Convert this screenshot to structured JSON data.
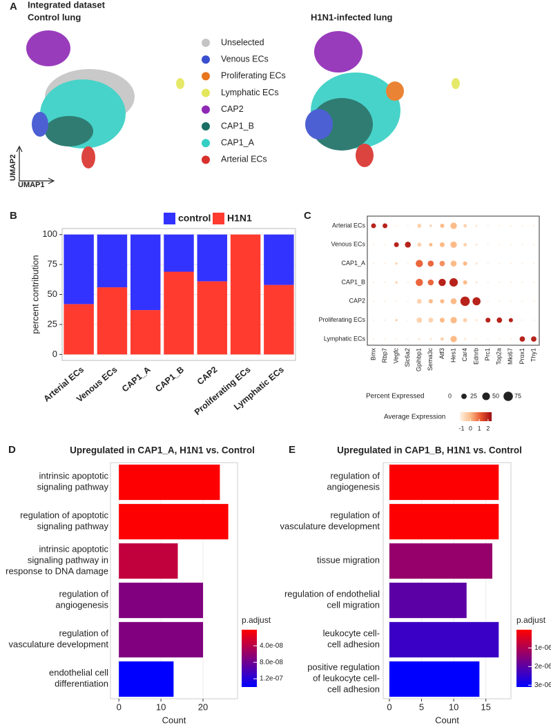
{
  "panel_labels": [
    "A",
    "B",
    "C",
    "D",
    "E"
  ],
  "panel_a": {
    "title": "Integrated dataset",
    "left_title": "Control lung",
    "right_title": "H1N1-infected lung",
    "x_axis": "UMAP1",
    "y_axis": "UMAP2",
    "legend": [
      {
        "name": "Unselected",
        "color": "#c4c4c4"
      },
      {
        "name": "Venous ECs",
        "color": "#3a4fcf"
      },
      {
        "name": "Proliferating ECs",
        "color": "#e8761e"
      },
      {
        "name": "Lymphatic ECs",
        "color": "#e3e65a"
      },
      {
        "name": "CAP2",
        "color": "#8e28b5"
      },
      {
        "name": "CAP1_B",
        "color": "#1a6e64"
      },
      {
        "name": "CAP1_A",
        "color": "#34cfc4"
      },
      {
        "name": "Arterial ECs",
        "color": "#d9302c"
      }
    ]
  },
  "chart_data": [
    {
      "type": "stacked_bar",
      "ylabel": "percent contribution",
      "categories": [
        "Arterial ECs",
        "Venous ECs",
        "CAP1_A",
        "CAP1_B",
        "CAP2",
        "Proliferating ECs",
        "Lymphatic ECs"
      ],
      "category_colors": [
        "#d9302c",
        "#2f3fc9",
        "#2ec9c0",
        "#1a6e64",
        "#8e28b5",
        "#e8761e",
        "#d8d020"
      ],
      "series": [
        {
          "name": "control",
          "color": "#3333ff",
          "values": [
            58,
            44,
            63,
            31,
            39,
            0,
            42
          ]
        },
        {
          "name": "H1N1",
          "color": "#ff3b30",
          "values": [
            42,
            56,
            37,
            69,
            61,
            100,
            58
          ]
        }
      ],
      "ylim": [
        -5,
        105
      ],
      "yticks": [
        0,
        25,
        50,
        75,
        100
      ],
      "grid": true
    },
    {
      "type": "dot",
      "rows": [
        "Arterial ECs",
        "Venous ECs",
        "CAP1_A",
        "CAP1_B",
        "CAP2",
        "Proliferating ECs",
        "Lymphatic ECs"
      ],
      "columns": [
        "Bmx",
        "Rbp7",
        "Vegfc",
        "Slc6a2",
        "Gpihbp1",
        "Sema3c",
        "Atf3",
        "Hes1",
        "Car4",
        "Ednrb",
        "Prc1",
        "Top2a",
        "Mki67",
        "Prox1",
        "Thy1"
      ],
      "percent_expressed": [
        [
          20,
          20,
          2,
          2,
          15,
          5,
          15,
          35,
          10,
          5,
          2,
          2,
          2,
          2,
          2
        ],
        [
          2,
          2,
          20,
          30,
          15,
          10,
          20,
          35,
          10,
          5,
          2,
          2,
          2,
          2,
          2
        ],
        [
          2,
          2,
          5,
          2,
          45,
          30,
          25,
          30,
          15,
          5,
          2,
          2,
          2,
          2,
          2
        ],
        [
          2,
          2,
          5,
          2,
          45,
          30,
          45,
          60,
          15,
          5,
          2,
          2,
          2,
          2,
          2
        ],
        [
          2,
          2,
          2,
          2,
          20,
          15,
          15,
          30,
          75,
          55,
          2,
          2,
          2,
          2,
          2
        ],
        [
          2,
          2,
          5,
          2,
          25,
          20,
          20,
          35,
          15,
          5,
          20,
          25,
          15,
          2,
          2
        ],
        [
          2,
          2,
          2,
          2,
          5,
          5,
          10,
          35,
          5,
          2,
          2,
          2,
          2,
          25,
          25
        ]
      ],
      "average_expression": [
        [
          2,
          2,
          -1,
          -1,
          -0.5,
          -0.5,
          0,
          0,
          -0.5,
          -1,
          -1,
          -1,
          -1,
          -1,
          -1
        ],
        [
          -1,
          -1,
          2,
          2,
          -0.5,
          0,
          0,
          0,
          -0.5,
          -1,
          -1,
          -1,
          -1,
          -1,
          -1
        ],
        [
          -1,
          -1,
          -0.5,
          -1,
          1,
          1,
          0.5,
          0,
          0,
          -1,
          -1,
          -1,
          -1,
          -1,
          -1
        ],
        [
          -1,
          -1,
          -0.5,
          -1,
          1,
          1,
          2,
          2,
          0,
          -1,
          -1,
          -1,
          -1,
          -1,
          -1
        ],
        [
          -1,
          -1,
          -1,
          -1,
          -0.5,
          0,
          0,
          0,
          2,
          2,
          -1,
          -1,
          -1,
          -1,
          -1
        ],
        [
          -1,
          -1,
          -0.5,
          -1,
          -0.5,
          -0.5,
          0,
          0,
          -0.5,
          -1,
          2,
          2,
          2,
          -1,
          -1
        ],
        [
          -1,
          -1,
          -1,
          -1,
          -1,
          -1,
          -0.5,
          0,
          -1,
          -1,
          -1,
          -1,
          -1,
          2,
          2
        ]
      ],
      "size_legend": {
        "title": "Percent Expressed",
        "values": [
          0,
          25,
          50,
          75
        ],
        "max": 75
      },
      "color_legend": {
        "title": "Average Expression",
        "ticks": [
          -1,
          0,
          1,
          2
        ],
        "lim": [
          -1.2,
          2.4
        ],
        "colors": [
          "#fff3e6",
          "#fcbb88",
          "#e8552e",
          "#9e0a12"
        ]
      }
    },
    {
      "type": "barh",
      "title": "Upregulated in CAP1_A, H1N1 vs. Control",
      "xlabel": "Count",
      "categories": [
        [
          "intrinsic apoptotic",
          "signaling pathway"
        ],
        [
          "regulation of apoptotic",
          "signaling pathway"
        ],
        [
          "intrinsic apoptotic",
          "signaling pathway in",
          "response to DNA damage"
        ],
        [
          "regulation of",
          "angiogenesis"
        ],
        [
          "regulation of",
          "vasculature development"
        ],
        [
          "endothelial cell",
          "differentiation"
        ]
      ],
      "values": [
        24,
        26,
        14,
        20,
        20,
        13
      ],
      "p_adjust": [
        2e-09,
        2e-09,
        3.5e-08,
        7e-08,
        7e-08,
        1.4e-07
      ],
      "xlim": [
        -2,
        28.2
      ],
      "xticks": [
        0,
        10,
        20
      ],
      "grid": true,
      "colorbar": {
        "title": "p.adjust",
        "lim": [
          1e-09,
          1.4e-07
        ],
        "low_color": "#ff0000",
        "high_color": "#0000ff",
        "ticks": [
          {
            "value": 4e-08,
            "label": "4.0e-08"
          },
          {
            "value": 8e-08,
            "label": "8.0e-08"
          },
          {
            "value": 1.2e-07,
            "label": "1.2e-07"
          }
        ]
      }
    },
    {
      "type": "barh",
      "title": "Upregulated in CAP1_B, H1N1 vs. Control",
      "xlabel": "Count",
      "categories": [
        [
          "regulation of",
          "angiogenesis"
        ],
        [
          "regulation of",
          "vasculature development"
        ],
        [
          "tissue migration"
        ],
        [
          "regulation of endothelial",
          "cell migration"
        ],
        [
          "leukocyte cell-",
          "cell adhesion"
        ],
        [
          "positive regulation",
          "of leukocyte cell-",
          "cell adhesion"
        ]
      ],
      "values": [
        17,
        17,
        16,
        12,
        17,
        14
      ],
      "p_adjust": [
        5e-08,
        5e-08,
        1.3e-06,
        2e-06,
        2.4e-06,
        3.1e-06
      ],
      "xlim": [
        -0.96,
        18.9
      ],
      "xticks": [
        0,
        5,
        10,
        15
      ],
      "grid": true,
      "colorbar": {
        "title": "p.adjust",
        "lim": [
          2e-08,
          3.1e-06
        ],
        "low_color": "#ff0000",
        "high_color": "#0000ff",
        "ticks": [
          {
            "value": 1e-06,
            "label": "1e-06"
          },
          {
            "value": 2e-06,
            "label": "2e-06"
          },
          {
            "value": 3e-06,
            "label": "3e-06"
          }
        ]
      }
    }
  ]
}
